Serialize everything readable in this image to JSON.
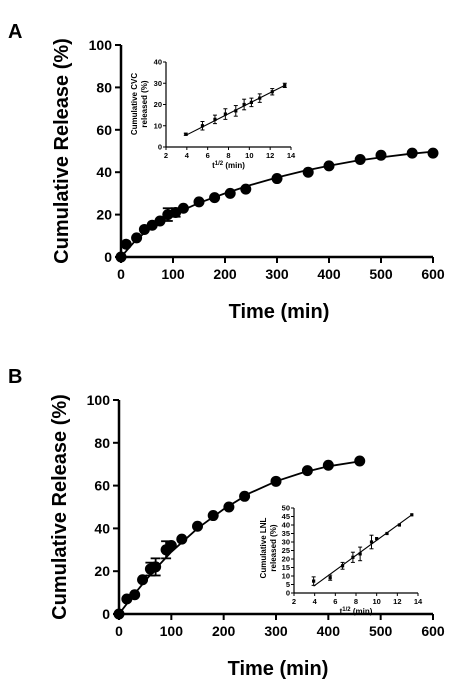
{
  "panels": [
    {
      "label": "A",
      "chart_data": {
        "type": "scatter",
        "xlabel": "Time (min)",
        "ylabel": "Cumulative Release (%)",
        "xlim": [
          0,
          600
        ],
        "ylim": [
          0,
          100
        ],
        "xticks": [
          0,
          100,
          200,
          300,
          400,
          500,
          600
        ],
        "yticks": [
          0,
          20,
          40,
          60,
          80,
          100
        ],
        "series": [
          {
            "points": [
              {
                "x": 0,
                "y": 0
              },
              {
                "x": 10,
                "y": 6
              },
              {
                "x": 30,
                "y": 9
              },
              {
                "x": 45,
                "y": 13
              },
              {
                "x": 60,
                "y": 15
              },
              {
                "x": 75,
                "y": 17
              },
              {
                "x": 90,
                "y": 20,
                "err": 3
              },
              {
                "x": 105,
                "y": 21,
                "err": 2
              },
              {
                "x": 120,
                "y": 23
              },
              {
                "x": 150,
                "y": 26
              },
              {
                "x": 180,
                "y": 28
              },
              {
                "x": 210,
                "y": 30
              },
              {
                "x": 240,
                "y": 32
              },
              {
                "x": 300,
                "y": 37
              },
              {
                "x": 360,
                "y": 40
              },
              {
                "x": 400,
                "y": 43
              },
              {
                "x": 460,
                "y": 46
              },
              {
                "x": 500,
                "y": 48
              },
              {
                "x": 560,
                "y": 49
              },
              {
                "x": 600,
                "y": 49
              }
            ],
            "fit_curve": [
              [
                0,
                0
              ],
              [
                25,
                7
              ],
              [
                50,
                12.5
              ],
              [
                75,
                16.5
              ],
              [
                100,
                20
              ],
              [
                150,
                25.5
              ],
              [
                200,
                30
              ],
              [
                250,
                34
              ],
              [
                300,
                37.5
              ],
              [
                350,
                40.5
              ],
              [
                400,
                43
              ],
              [
                450,
                45.3
              ],
              [
                500,
                47
              ],
              [
                550,
                48.5
              ],
              [
                600,
                49.7
              ]
            ]
          }
        ],
        "inset": {
          "ylabel": "Cumulative CVC released (%)",
          "xlabel": "t1/2 (min)",
          "xlim": [
            2,
            14
          ],
          "ylim": [
            0,
            40
          ],
          "xticks": [
            2,
            4,
            6,
            8,
            10,
            12,
            14
          ],
          "yticks": [
            0,
            10,
            20,
            30,
            40
          ],
          "points": [
            {
              "x": 3.9,
              "y": 6,
              "err": 0.5
            },
            {
              "x": 5.5,
              "y": 10,
              "err": 2
            },
            {
              "x": 6.7,
              "y": 13,
              "err": 2
            },
            {
              "x": 7.7,
              "y": 15.5,
              "err": 2.5
            },
            {
              "x": 8.7,
              "y": 17,
              "err": 2.5
            },
            {
              "x": 9.5,
              "y": 20,
              "err": 2.5
            },
            {
              "x": 10.2,
              "y": 21,
              "err": 2
            },
            {
              "x": 11,
              "y": 23,
              "err": 2
            },
            {
              "x": 12.2,
              "y": 26,
              "err": 1.5
            },
            {
              "x": 13.4,
              "y": 29,
              "err": 1
            }
          ],
          "line": [
            [
              3.9,
              5.5
            ],
            [
              13.4,
              29
            ]
          ]
        }
      }
    },
    {
      "label": "B",
      "chart_data": {
        "type": "scatter",
        "xlabel": "Time (min)",
        "ylabel": "Cumulative Release (%)",
        "xlim": [
          0,
          600
        ],
        "ylim": [
          0,
          100
        ],
        "xticks": [
          0,
          100,
          200,
          300,
          400,
          500,
          600
        ],
        "yticks": [
          0,
          20,
          40,
          60,
          80,
          100
        ],
        "series": [
          {
            "points": [
              {
                "x": 0,
                "y": 0
              },
              {
                "x": 15,
                "y": 7
              },
              {
                "x": 30,
                "y": 9
              },
              {
                "x": 45,
                "y": 16
              },
              {
                "x": 60,
                "y": 21,
                "err": 3
              },
              {
                "x": 70,
                "y": 22,
                "err": 4
              },
              {
                "x": 90,
                "y": 30,
                "err": 4
              },
              {
                "x": 100,
                "y": 32
              },
              {
                "x": 120,
                "y": 35
              },
              {
                "x": 150,
                "y": 41
              },
              {
                "x": 180,
                "y": 46
              },
              {
                "x": 210,
                "y": 50
              },
              {
                "x": 240,
                "y": 55
              },
              {
                "x": 300,
                "y": 62
              },
              {
                "x": 360,
                "y": 67
              },
              {
                "x": 400,
                "y": 69.5
              },
              {
                "x": 460,
                "y": 71.5
              }
            ],
            "fit_curve": [
              [
                0,
                0
              ],
              [
                25,
                8
              ],
              [
                50,
                15.5
              ],
              [
                75,
                22.5
              ],
              [
                100,
                29
              ],
              [
                150,
                40
              ],
              [
                200,
                49
              ],
              [
                250,
                56.5
              ],
              [
                300,
                62
              ],
              [
                350,
                66
              ],
              [
                400,
                69
              ],
              [
                460,
                71.3
              ]
            ]
          }
        ],
        "inset": {
          "ylabel": "Cumulative LNL released (%)",
          "xlabel": "t1/2 (min)",
          "xlim": [
            2,
            14
          ],
          "ylim": [
            0,
            50
          ],
          "xticks": [
            2,
            4,
            6,
            8,
            10,
            12,
            14
          ],
          "yticks": [
            0,
            5,
            10,
            15,
            20,
            25,
            30,
            35,
            40,
            45,
            50
          ],
          "points": [
            {
              "x": 3.9,
              "y": 7,
              "err": 2.5
            },
            {
              "x": 5.5,
              "y": 9,
              "err": 1.5
            },
            {
              "x": 6.7,
              "y": 16,
              "err": 2
            },
            {
              "x": 7.7,
              "y": 21,
              "err": 3
            },
            {
              "x": 8.4,
              "y": 23,
              "err": 4
            },
            {
              "x": 9.5,
              "y": 30,
              "err": 4
            },
            {
              "x": 10,
              "y": 32
            },
            {
              "x": 11,
              "y": 35
            },
            {
              "x": 12.2,
              "y": 40
            },
            {
              "x": 13.4,
              "y": 46
            }
          ],
          "line": [
            [
              3.9,
              4
            ],
            [
              13.4,
              46
            ]
          ]
        }
      }
    }
  ]
}
